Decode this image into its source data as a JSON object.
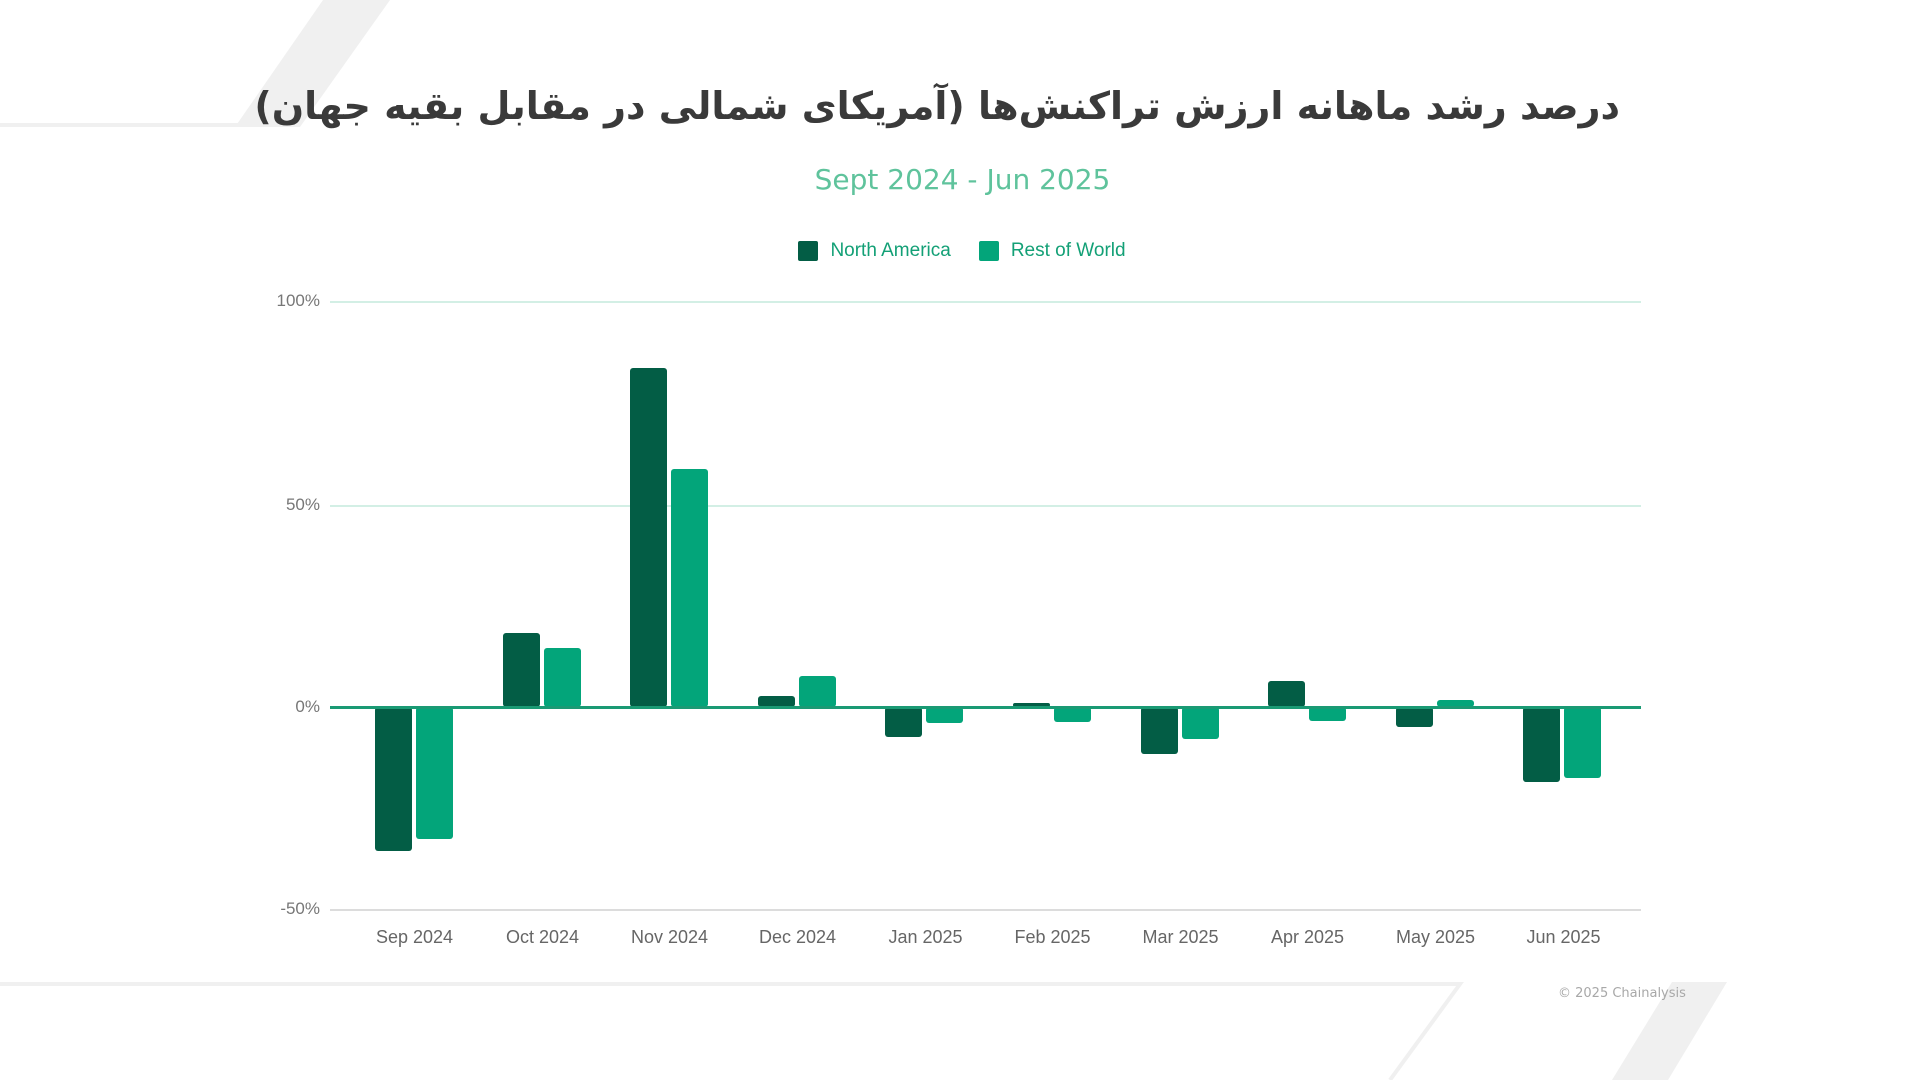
{
  "colors": {
    "north_america": "#035d45",
    "rest_of_world": "#03a57a",
    "title": "#3a3a3a",
    "subtitle": "#5fc39c",
    "legend_text": "#13a076",
    "grid": "#d3efe5",
    "baseline": "#1a9a74"
  },
  "header": {
    "title": "درصد رشد ماهانه ارزش تراکنش‌ها (آمریکای شمالی در مقابل بقیه جهان)",
    "subtitle": "Sept 2024 - Jun 2025"
  },
  "legend": {
    "items": [
      {
        "label": "North America"
      },
      {
        "label": "Rest of World"
      }
    ]
  },
  "axes": {
    "y_ticks": [
      "100%",
      "50%",
      "0%",
      "-50%"
    ],
    "x_ticks": [
      "Sep 2024",
      "Oct 2024",
      "Nov 2024",
      "Dec 2024",
      "Jan 2025",
      "Feb 2025",
      "Mar 2025",
      "Apr 2025",
      "May 2025",
      "Jun 2025"
    ]
  },
  "footer": {
    "credit": "© 2025 Chainalysis"
  },
  "chart_data": {
    "type": "bar",
    "title": "درصد رشد ماهانه ارزش تراکنش‌ها (آمریکای شمالی در مقابل بقیه جهان)",
    "subtitle": "Sept 2024 - Jun 2025",
    "categories": [
      "Sep 2024",
      "Oct 2024",
      "Nov 2024",
      "Dec 2024",
      "Jan 2025",
      "Feb 2025",
      "Mar 2025",
      "Apr 2025",
      "May 2025",
      "Jun 2025"
    ],
    "series": [
      {
        "name": "North America",
        "color": "#035d45",
        "values": [
          -35.5,
          18.2,
          83.5,
          2.7,
          -7.4,
          0.9,
          -11.5,
          6.4,
          -5.0,
          -18.5
        ]
      },
      {
        "name": "Rest of World",
        "color": "#03a57a",
        "values": [
          -32.5,
          14.5,
          58.6,
          7.6,
          -4.0,
          -3.6,
          -7.8,
          -3.4,
          1.7,
          -17.5
        ]
      }
    ],
    "xlabel": "",
    "ylabel": "",
    "ylim": [
      -50,
      100
    ],
    "yticks": [
      "100%",
      "50%",
      "0%",
      "-50%"
    ],
    "grid": true,
    "legend_position": "top"
  }
}
